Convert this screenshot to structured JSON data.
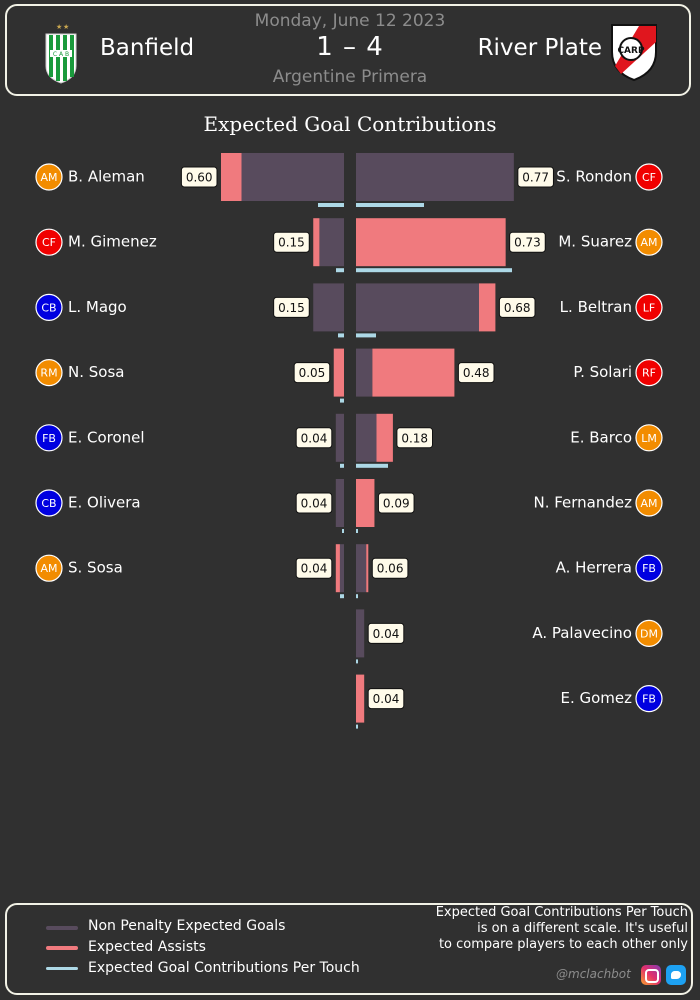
{
  "header": {
    "date": "Monday, June 12 2023",
    "home_team": "Banfield",
    "away_team": "River Plate",
    "score": "1  –  4",
    "competition": "Argentine Primera"
  },
  "legend": {
    "npxg": "Non Penalty Expected Goals",
    "xa": "Expected Assists",
    "per_touch": "Expected Goal Contributions Per Touch",
    "note_lines": [
      "Expected Goal Contributions Per Touch",
      "is on a different scale.  It's useful",
      "to compare players to each other only"
    ],
    "credit": "@mclachbot"
  },
  "colors": {
    "background": "#303030",
    "npxg": "#584b5d",
    "xa": "#f07a7e",
    "per_touch": "#add8e6",
    "pos_orange": "#f28c00",
    "pos_red": "#f00000",
    "pos_blue": "#0000e0",
    "home_crest": "#1a9a3c",
    "away_crest": "#e0161e"
  },
  "chart_data": {
    "type": "bar",
    "title": "Expected Goal Contributions",
    "series": [
      {
        "name": "Non Penalty Expected Goals"
      },
      {
        "name": "Expected Assists"
      },
      {
        "name": "Expected Goal Contributions Per Touch"
      }
    ],
    "home": [
      {
        "name": "B. Aleman",
        "pos": "AM",
        "npxg": 0.5,
        "xa": 0.1,
        "total": "0.60",
        "per_touch": 0.013
      },
      {
        "name": "M. Gimenez",
        "pos": "CF",
        "npxg": 0.12,
        "xa": 0.03,
        "total": "0.15",
        "per_touch": 0.004
      },
      {
        "name": "L. Mago",
        "pos": "CB",
        "npxg": 0.15,
        "xa": 0.0,
        "total": "0.15",
        "per_touch": 0.003
      },
      {
        "name": "N. Sosa",
        "pos": "RM",
        "npxg": 0.0,
        "xa": 0.05,
        "total": "0.05",
        "per_touch": 0.002
      },
      {
        "name": "E. Coronel",
        "pos": "FB",
        "npxg": 0.04,
        "xa": 0.0,
        "total": "0.04",
        "per_touch": 0.002
      },
      {
        "name": "E. Olivera",
        "pos": "CB",
        "npxg": 0.04,
        "xa": 0.0,
        "total": "0.04",
        "per_touch": 0.001
      },
      {
        "name": "S. Sosa",
        "pos": "AM",
        "npxg": 0.02,
        "xa": 0.02,
        "total": "0.04",
        "per_touch": 0.002
      }
    ],
    "away": [
      {
        "name": "S. Rondon",
        "pos": "CF",
        "npxg": 0.77,
        "xa": 0.0,
        "total": "0.77",
        "per_touch": 0.034
      },
      {
        "name": "M. Suarez",
        "pos": "AM",
        "npxg": 0.0,
        "xa": 0.73,
        "total": "0.73",
        "per_touch": 0.078
      },
      {
        "name": "L. Beltran",
        "pos": "LF",
        "npxg": 0.6,
        "xa": 0.08,
        "total": "0.68",
        "per_touch": 0.01
      },
      {
        "name": "P. Solari",
        "pos": "RF",
        "npxg": 0.08,
        "xa": 0.4,
        "total": "0.48",
        "per_touch": 0.0
      },
      {
        "name": "E. Barco",
        "pos": "LM",
        "npxg": 0.1,
        "xa": 0.08,
        "total": "0.18",
        "per_touch": 0.016
      },
      {
        "name": "N. Fernandez",
        "pos": "AM",
        "npxg": 0.0,
        "xa": 0.09,
        "total": "0.09",
        "per_touch": 0.001
      },
      {
        "name": "A. Herrera",
        "pos": "FB",
        "npxg": 0.05,
        "xa": 0.01,
        "total": "0.06",
        "per_touch": 0.001
      },
      {
        "name": "A. Palavecino",
        "pos": "DM",
        "npxg": 0.04,
        "xa": 0.0,
        "total": "0.04",
        "per_touch": 0.001
      },
      {
        "name": "E. Gomez",
        "pos": "FB",
        "npxg": 0.0,
        "xa": 0.04,
        "total": "0.04",
        "per_touch": 0.001
      }
    ]
  }
}
